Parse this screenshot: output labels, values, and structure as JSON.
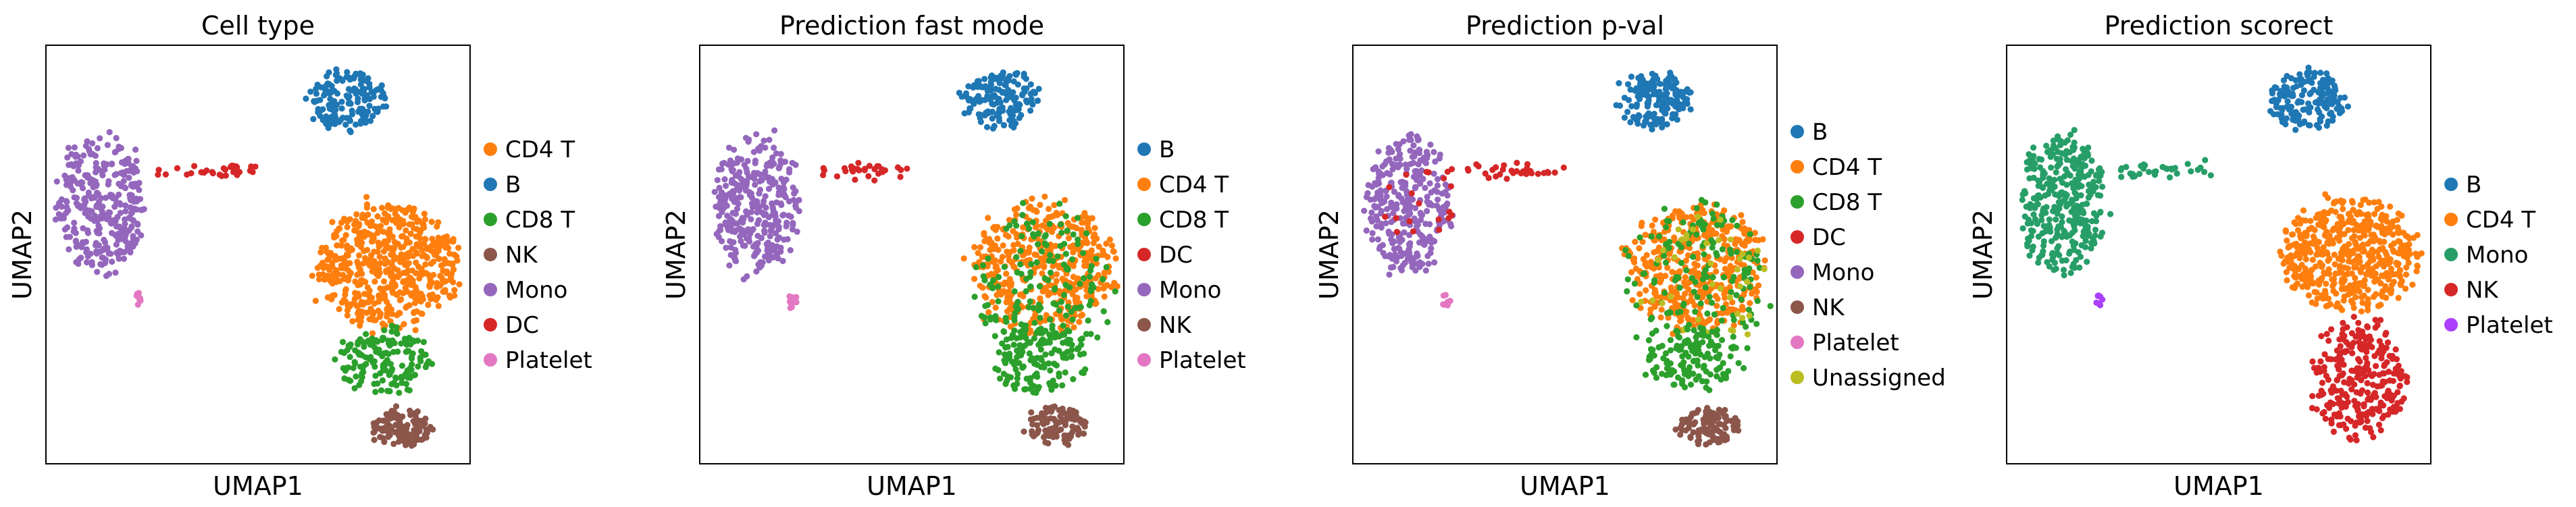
{
  "chart_data": [
    {
      "type": "scatter",
      "title": "Cell type",
      "xlabel": "UMAP1",
      "ylabel": "UMAP2",
      "legend_position": "right",
      "legend": [
        {
          "name": "CD4 T",
          "color": "#ff7f0e"
        },
        {
          "name": "B",
          "color": "#1f77b4"
        },
        {
          "name": "CD8 T",
          "color": "#2ca02c"
        },
        {
          "name": "NK",
          "color": "#8c564b"
        },
        {
          "name": "Mono",
          "color": "#9467bd"
        },
        {
          "name": "DC",
          "color": "#d62728"
        },
        {
          "name": "Platelet",
          "color": "#e377c2"
        }
      ],
      "clusters": [
        {
          "label": "B",
          "color": "#1f77b4",
          "cx": 0.71,
          "cy": 0.87,
          "rx": 0.09,
          "ry": 0.07,
          "n": 160,
          "shape": "blob"
        },
        {
          "label": "Mono",
          "color": "#9467bd",
          "cx": 0.13,
          "cy": 0.62,
          "rx": 0.1,
          "ry": 0.16,
          "n": 330,
          "shape": "blob"
        },
        {
          "label": "DC",
          "color": "#d62728",
          "cx": 0.38,
          "cy": 0.7,
          "rx": 0.12,
          "ry": 0.015,
          "n": 32,
          "shape": "streak"
        },
        {
          "label": "Platelet",
          "color": "#e377c2",
          "cx": 0.22,
          "cy": 0.39,
          "rx": 0.01,
          "ry": 0.02,
          "n": 9,
          "shape": "blob"
        },
        {
          "label": "CD4 T",
          "color": "#ff7f0e",
          "cx": 0.81,
          "cy": 0.47,
          "rx": 0.16,
          "ry": 0.15,
          "n": 560,
          "shape": "blob"
        },
        {
          "label": "CD8 T",
          "color": "#2ca02c",
          "cx": 0.8,
          "cy": 0.25,
          "rx": 0.11,
          "ry": 0.08,
          "n": 160,
          "shape": "blob"
        },
        {
          "label": "NK",
          "color": "#8c564b",
          "cx": 0.84,
          "cy": 0.09,
          "rx": 0.07,
          "ry": 0.045,
          "n": 120,
          "shape": "blob"
        }
      ]
    },
    {
      "type": "scatter",
      "title": "Prediction fast mode",
      "xlabel": "UMAP1",
      "ylabel": "UMAP2",
      "legend_position": "right",
      "legend": [
        {
          "name": "B",
          "color": "#1f77b4"
        },
        {
          "name": "CD4 T",
          "color": "#ff7f0e"
        },
        {
          "name": "CD8 T",
          "color": "#2ca02c"
        },
        {
          "name": "DC",
          "color": "#d62728"
        },
        {
          "name": "Mono",
          "color": "#9467bd"
        },
        {
          "name": "NK",
          "color": "#8c564b"
        },
        {
          "name": "Platelet",
          "color": "#e377c2"
        }
      ],
      "clusters": [
        {
          "label": "B",
          "color": "#1f77b4",
          "cx": 0.71,
          "cy": 0.87,
          "rx": 0.09,
          "ry": 0.07,
          "n": 160,
          "shape": "blob"
        },
        {
          "label": "Mono",
          "color": "#9467bd",
          "cx": 0.13,
          "cy": 0.62,
          "rx": 0.1,
          "ry": 0.16,
          "n": 330,
          "shape": "blob"
        },
        {
          "label": "DC",
          "color": "#d62728",
          "cx": 0.38,
          "cy": 0.7,
          "rx": 0.12,
          "ry": 0.015,
          "n": 30,
          "shape": "streak"
        },
        {
          "label": "Platelet",
          "color": "#e377c2",
          "cx": 0.22,
          "cy": 0.39,
          "rx": 0.01,
          "ry": 0.02,
          "n": 9,
          "shape": "blob"
        },
        {
          "label": "CD4 T",
          "color": "#ff7f0e",
          "cx": 0.81,
          "cy": 0.47,
          "rx": 0.16,
          "ry": 0.15,
          "n": 450,
          "shape": "blob"
        },
        {
          "label": "CD8 T",
          "color": "#2ca02c",
          "cx": 0.81,
          "cy": 0.42,
          "rx": 0.16,
          "ry": 0.2,
          "n": 170,
          "shape": "blob"
        },
        {
          "label": "CD8 T",
          "color": "#2ca02c",
          "cx": 0.8,
          "cy": 0.25,
          "rx": 0.11,
          "ry": 0.08,
          "n": 140,
          "shape": "blob"
        },
        {
          "label": "NK",
          "color": "#8c564b",
          "cx": 0.84,
          "cy": 0.09,
          "rx": 0.07,
          "ry": 0.045,
          "n": 110,
          "shape": "blob"
        }
      ]
    },
    {
      "type": "scatter",
      "title": "Prediction p-val",
      "xlabel": "UMAP1",
      "ylabel": "UMAP2",
      "legend_position": "right",
      "legend": [
        {
          "name": "B",
          "color": "#1f77b4"
        },
        {
          "name": "CD4 T",
          "color": "#ff7f0e"
        },
        {
          "name": "CD8 T",
          "color": "#2ca02c"
        },
        {
          "name": "DC",
          "color": "#d62728"
        },
        {
          "name": "Mono",
          "color": "#9467bd"
        },
        {
          "name": "NK",
          "color": "#8c564b"
        },
        {
          "name": "Platelet",
          "color": "#e377c2"
        },
        {
          "name": "Unassigned",
          "color": "#bcbd22"
        }
      ],
      "clusters": [
        {
          "label": "B",
          "color": "#1f77b4",
          "cx": 0.71,
          "cy": 0.87,
          "rx": 0.09,
          "ry": 0.07,
          "n": 160,
          "shape": "blob"
        },
        {
          "label": "Mono",
          "color": "#9467bd",
          "cx": 0.13,
          "cy": 0.62,
          "rx": 0.1,
          "ry": 0.16,
          "n": 320,
          "shape": "blob"
        },
        {
          "label": "DC",
          "color": "#d62728",
          "cx": 0.16,
          "cy": 0.64,
          "rx": 0.09,
          "ry": 0.12,
          "n": 20,
          "shape": "blob"
        },
        {
          "label": "DC",
          "color": "#d62728",
          "cx": 0.38,
          "cy": 0.7,
          "rx": 0.12,
          "ry": 0.015,
          "n": 30,
          "shape": "streak"
        },
        {
          "label": "Platelet",
          "color": "#e377c2",
          "cx": 0.22,
          "cy": 0.39,
          "rx": 0.01,
          "ry": 0.02,
          "n": 9,
          "shape": "blob"
        },
        {
          "label": "CD4 T",
          "color": "#ff7f0e",
          "cx": 0.81,
          "cy": 0.47,
          "rx": 0.16,
          "ry": 0.15,
          "n": 430,
          "shape": "blob"
        },
        {
          "label": "CD8 T",
          "color": "#2ca02c",
          "cx": 0.81,
          "cy": 0.42,
          "rx": 0.16,
          "ry": 0.2,
          "n": 160,
          "shape": "blob"
        },
        {
          "label": "Unassigned",
          "color": "#bcbd22",
          "cx": 0.83,
          "cy": 0.45,
          "rx": 0.15,
          "ry": 0.17,
          "n": 40,
          "shape": "blob"
        },
        {
          "label": "CD8 T",
          "color": "#2ca02c",
          "cx": 0.8,
          "cy": 0.25,
          "rx": 0.11,
          "ry": 0.08,
          "n": 120,
          "shape": "blob"
        },
        {
          "label": "NK",
          "color": "#8c564b",
          "cx": 0.84,
          "cy": 0.09,
          "rx": 0.07,
          "ry": 0.045,
          "n": 110,
          "shape": "blob"
        }
      ]
    },
    {
      "type": "scatter",
      "title": "Prediction scorect",
      "xlabel": "UMAP1",
      "ylabel": "UMAP2",
      "legend_position": "right",
      "legend": [
        {
          "name": "B",
          "color": "#1f77b4"
        },
        {
          "name": "CD4 T",
          "color": "#ff7f0e"
        },
        {
          "name": "Mono",
          "color": "#279e68"
        },
        {
          "name": "NK",
          "color": "#d62728"
        },
        {
          "name": "Platelet",
          "color": "#aa40fc"
        }
      ],
      "clusters": [
        {
          "label": "B",
          "color": "#1f77b4",
          "cx": 0.71,
          "cy": 0.87,
          "rx": 0.09,
          "ry": 0.07,
          "n": 160,
          "shape": "blob"
        },
        {
          "label": "Mono",
          "color": "#279e68",
          "cx": 0.13,
          "cy": 0.62,
          "rx": 0.1,
          "ry": 0.16,
          "n": 330,
          "shape": "blob"
        },
        {
          "label": "Mono",
          "color": "#279e68",
          "cx": 0.38,
          "cy": 0.7,
          "rx": 0.12,
          "ry": 0.015,
          "n": 32,
          "shape": "streak"
        },
        {
          "label": "Platelet",
          "color": "#aa40fc",
          "cx": 0.22,
          "cy": 0.39,
          "rx": 0.01,
          "ry": 0.02,
          "n": 9,
          "shape": "blob"
        },
        {
          "label": "CD4 T",
          "color": "#ff7f0e",
          "cx": 0.81,
          "cy": 0.5,
          "rx": 0.16,
          "ry": 0.13,
          "n": 520,
          "shape": "blob"
        },
        {
          "label": "NK",
          "color": "#d62728",
          "cx": 0.83,
          "cy": 0.2,
          "rx": 0.11,
          "ry": 0.14,
          "n": 280,
          "shape": "blob"
        }
      ]
    }
  ]
}
